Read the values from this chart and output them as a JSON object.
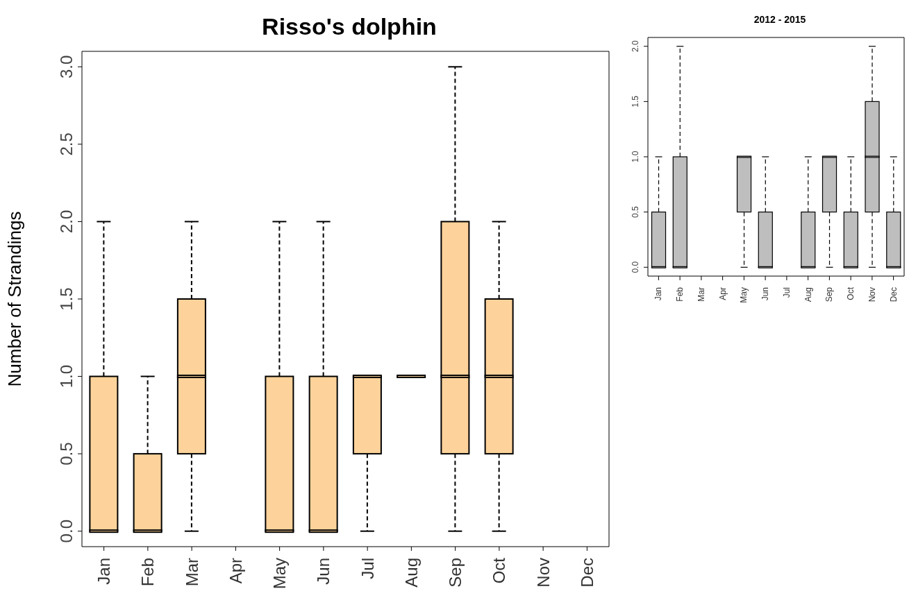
{
  "chart_data": [
    {
      "type": "box",
      "title": "Risso's dolphin",
      "ylabel": "Number of Strandings",
      "categories": [
        "Jan",
        "Feb",
        "Mar",
        "Apr",
        "May",
        "Jun",
        "Jul",
        "Aug",
        "Sep",
        "Oct",
        "Nov",
        "Dec"
      ],
      "color": "#fdd39b",
      "ylim": [
        -0.1,
        3.1
      ],
      "yticks": [
        {
          "value": 0,
          "label": "0.0"
        },
        {
          "value": 0.5,
          "label": "0.5"
        },
        {
          "value": 1,
          "label": "1.0"
        },
        {
          "value": 1.5,
          "label": "1.5"
        },
        {
          "value": 2,
          "label": "2.0"
        },
        {
          "value": 2.5,
          "label": "2.5"
        },
        {
          "value": 3,
          "label": "3.0"
        }
      ],
      "boxes": [
        {
          "low": 0,
          "q1": 0,
          "median": 0,
          "q3": 1,
          "high": 2
        },
        {
          "low": 0,
          "q1": 0,
          "median": 0,
          "q3": 0.5,
          "high": 1
        },
        {
          "low": 0,
          "q1": 0.5,
          "median": 1,
          "q3": 1.5,
          "high": 2
        },
        null,
        {
          "low": 0,
          "q1": 0,
          "median": 0,
          "q3": 1,
          "high": 2
        },
        {
          "low": 0,
          "q1": 0,
          "median": 0,
          "q3": 1,
          "high": 2
        },
        {
          "low": 0,
          "q1": 0.5,
          "median": 1,
          "q3": 1,
          "high": 1
        },
        {
          "low": 1,
          "q1": 1,
          "median": 1,
          "q3": 1,
          "high": 1
        },
        {
          "low": 0,
          "q1": 0.5,
          "median": 1,
          "q3": 2,
          "high": 3
        },
        {
          "low": 0,
          "q1": 0.5,
          "median": 1,
          "q3": 1.5,
          "high": 2
        },
        null,
        null
      ]
    },
    {
      "type": "box",
      "title": "2012 - 2015",
      "categories": [
        "Jan",
        "Feb",
        "Mar",
        "Apr",
        "May",
        "Jun",
        "Jul",
        "Aug",
        "Sep",
        "Oct",
        "Nov",
        "Dec"
      ],
      "color": "#bebebe",
      "ylim": [
        -0.08,
        2.08
      ],
      "yticks": [
        {
          "value": 0,
          "label": "0.0"
        },
        {
          "value": 0.5,
          "label": "0.5"
        },
        {
          "value": 1,
          "label": "1.0"
        },
        {
          "value": 1.5,
          "label": "1.5"
        },
        {
          "value": 2,
          "label": "2.0"
        }
      ],
      "boxes": [
        {
          "low": 0,
          "q1": 0,
          "median": 0,
          "q3": 0.5,
          "high": 1
        },
        {
          "low": 0,
          "q1": 0,
          "median": 0,
          "q3": 1,
          "high": 2
        },
        null,
        null,
        {
          "low": 0,
          "q1": 0.5,
          "median": 1,
          "q3": 1,
          "high": 1
        },
        {
          "low": 0,
          "q1": 0,
          "median": 0,
          "q3": 0.5,
          "high": 1
        },
        null,
        {
          "low": 0,
          "q1": 0,
          "median": 0,
          "q3": 0.5,
          "high": 1
        },
        {
          "low": 0,
          "q1": 0.5,
          "median": 1,
          "q3": 1,
          "high": 1
        },
        {
          "low": 0,
          "q1": 0,
          "median": 0,
          "q3": 0.5,
          "high": 1
        },
        {
          "low": 0,
          "q1": 0.5,
          "median": 1,
          "q3": 1.5,
          "high": 2
        },
        {
          "low": 0,
          "q1": 0,
          "median": 0,
          "q3": 0.5,
          "high": 1
        }
      ]
    }
  ]
}
